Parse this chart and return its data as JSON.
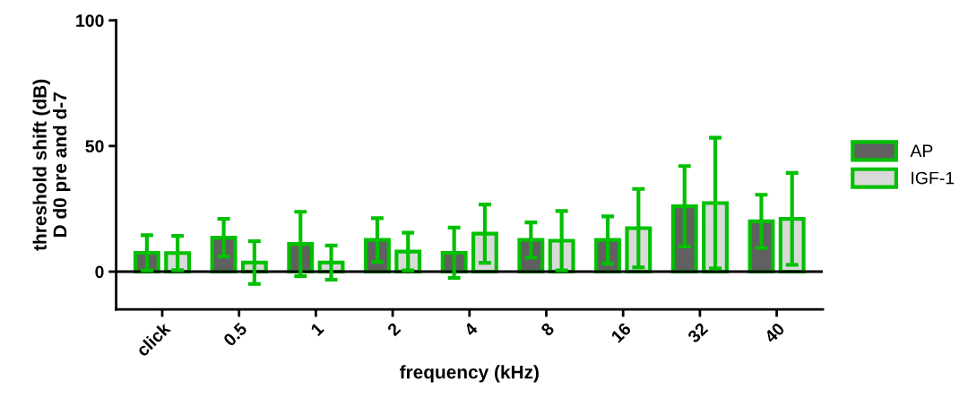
{
  "chart_data": {
    "type": "bar",
    "xlabel": "frequency (kHz)",
    "ylabel": "threshold shift (dB)\nD d0 pre and d-7",
    "categories": [
      "click",
      "0.5",
      "1",
      "2",
      "4",
      "8",
      "16",
      "32",
      "40"
    ],
    "series": [
      {
        "name": "AP",
        "color": "#606060",
        "values": [
          7.5,
          13.5,
          11,
          12.6,
          7.5,
          12.6,
          12.6,
          26,
          20
        ],
        "errors": [
          7,
          7.5,
          12.8,
          8.7,
          10,
          7,
          9.4,
          16,
          10.6
        ]
      },
      {
        "name": "IGF-1",
        "color": "#d9d9d9",
        "values": [
          7.4,
          3.6,
          3.6,
          8,
          15.1,
          12.3,
          17.3,
          27.3,
          21
        ],
        "errors": [
          6.8,
          8.5,
          6.8,
          7.5,
          11.6,
          11.8,
          15.6,
          26,
          18.3
        ]
      }
    ],
    "ylim": [
      -15,
      100
    ],
    "yticks": [
      0,
      50,
      100
    ],
    "ref_lines": [
      {
        "axis": "y",
        "value": 0,
        "color": "#000000"
      }
    ],
    "grid": false,
    "legend": "right"
  }
}
